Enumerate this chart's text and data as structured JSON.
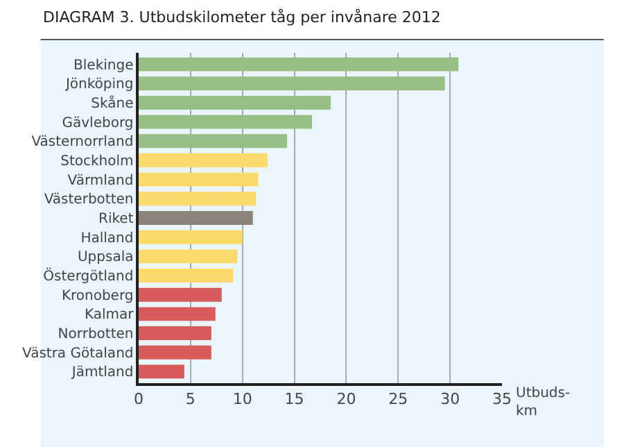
{
  "chart_data": {
    "type": "bar",
    "orientation": "horizontal",
    "title": "DIAGRAM 3. Utbudskilometer tåg per invånare 2012",
    "xlabel": "Utbuds-\nkm",
    "categories": [
      "Blekinge",
      "Jönköping",
      "Skåne",
      "Gävleborg",
      "Västernorrland",
      "Stockholm",
      "Värmland",
      "Västerbotten",
      "Riket",
      "Halland",
      "Uppsala",
      "Östergötland",
      "Kronoberg",
      "Kalmar",
      "Norrbotten",
      "Västra Götaland",
      "Jämtland"
    ],
    "values": [
      30.8,
      29.5,
      18.5,
      16.7,
      14.3,
      12.4,
      11.5,
      11.3,
      11.0,
      10.0,
      9.5,
      9.1,
      8.0,
      7.4,
      7.0,
      7.0,
      4.4
    ],
    "colors": [
      "#97bf85",
      "#97bf85",
      "#97bf85",
      "#97bf85",
      "#97bf85",
      "#fbd96a",
      "#fbd96a",
      "#fbd96a",
      "#8c8279",
      "#fbd96a",
      "#fbd96a",
      "#fbd96a",
      "#d95c5c",
      "#d95c5c",
      "#d95c5c",
      "#d95c5c",
      "#d95c5c"
    ],
    "xlim": [
      0,
      35
    ],
    "xticks": [
      0,
      5,
      10,
      15,
      20,
      25,
      30,
      35
    ],
    "grid": "x"
  }
}
